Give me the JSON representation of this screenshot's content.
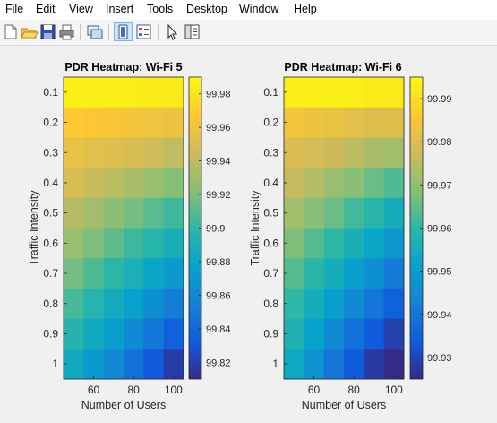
{
  "menu": [
    "File",
    "Edit",
    "View",
    "Insert",
    "Tools",
    "Desktop",
    "Window",
    "Help"
  ],
  "toolbar_icons": [
    "new-figure-icon",
    "open-file-icon",
    "save-icon",
    "print-icon",
    "link-plot-icon",
    "insert-colorbar-icon",
    "insert-legend-icon",
    "pointer-icon",
    "property-inspector-icon"
  ],
  "colors": {
    "parula": [
      "#352a87",
      "#0f5cdd",
      "#1481d6",
      "#06a4ca",
      "#2eb7a4",
      "#87bf77",
      "#d1bb59",
      "#fec832",
      "#f9fb0e"
    ]
  },
  "chart_data": [
    {
      "type": "heatmap",
      "title": "PDR Heatmap: Wi-Fi 5",
      "xlabel": "Number of Users",
      "ylabel": "Traffic Intensity",
      "x": [
        50,
        60,
        70,
        80,
        90,
        100
      ],
      "y": [
        0.1,
        0.2,
        0.3,
        0.4,
        0.5,
        0.6,
        0.7,
        0.8,
        0.9,
        1
      ],
      "xticks": [
        "60",
        "80",
        "100"
      ],
      "yticks": [
        "0.1",
        "0.2",
        "0.3",
        "0.4",
        "0.5",
        "0.6",
        "0.7",
        "0.8",
        "0.9",
        "1"
      ],
      "colorbar": {
        "min": 99.81,
        "max": 99.99,
        "ticks": [
          "99.98",
          "99.96",
          "99.94",
          "99.92",
          "99.9",
          "99.88",
          "99.86",
          "99.84",
          "99.82"
        ],
        "tick_values": [
          99.98,
          99.96,
          99.94,
          99.92,
          99.9,
          99.88,
          99.86,
          99.84,
          99.82
        ]
      },
      "values": [
        [
          99.985,
          99.985,
          99.985,
          99.984,
          99.983,
          99.983
        ],
        [
          99.968,
          99.966,
          99.964,
          99.962,
          99.96,
          99.958
        ],
        [
          99.957,
          99.953,
          99.951,
          99.948,
          99.944,
          99.94
        ],
        [
          99.948,
          99.943,
          99.938,
          99.933,
          99.928,
          99.922
        ],
        [
          99.937,
          99.931,
          99.924,
          99.918,
          99.911,
          99.904
        ],
        [
          99.928,
          99.92,
          99.912,
          99.904,
          99.896,
          99.888
        ],
        [
          99.917,
          99.908,
          99.899,
          99.89,
          99.88,
          99.871
        ],
        [
          99.906,
          99.896,
          99.886,
          99.876,
          99.864,
          99.853
        ],
        [
          99.895,
          99.884,
          99.873,
          99.861,
          99.849,
          99.836
        ],
        [
          99.884,
          99.872,
          99.86,
          99.846,
          99.832,
          99.818
        ]
      ]
    },
    {
      "type": "heatmap",
      "title": "PDR Heatmap: Wi-Fi 6",
      "xlabel": "Number of Users",
      "ylabel": "Traffic Intensity",
      "x": [
        50,
        60,
        70,
        80,
        90,
        100
      ],
      "y": [
        0.1,
        0.2,
        0.3,
        0.4,
        0.5,
        0.6,
        0.7,
        0.8,
        0.9,
        1
      ],
      "xticks": [
        "60",
        "80",
        "100"
      ],
      "yticks": [
        "0.1",
        "0.2",
        "0.3",
        "0.4",
        "0.5",
        "0.6",
        "0.7",
        "0.8",
        "0.9",
        "1"
      ],
      "colorbar": {
        "min": 99.925,
        "max": 99.995,
        "ticks": [
          "99.99",
          "99.98",
          "99.97",
          "99.96",
          "99.95",
          "99.94",
          "99.93"
        ],
        "tick_values": [
          99.99,
          99.98,
          99.97,
          99.96,
          99.95,
          99.94,
          99.93
        ]
      },
      "values": [
        [
          99.993,
          99.993,
          99.993,
          99.993,
          99.992,
          99.992
        ],
        [
          99.984,
          99.983,
          99.982,
          99.981,
          99.98,
          99.98
        ],
        [
          99.979,
          99.978,
          99.977,
          99.975,
          99.973,
          99.972
        ],
        [
          99.976,
          99.974,
          99.971,
          99.969,
          99.966,
          99.963
        ],
        [
          99.972,
          99.969,
          99.966,
          99.962,
          99.959,
          99.955
        ],
        [
          99.968,
          99.964,
          99.96,
          99.956,
          99.952,
          99.948
        ],
        [
          99.964,
          99.959,
          99.955,
          99.95,
          99.946,
          99.941
        ],
        [
          99.96,
          99.955,
          99.95,
          99.945,
          99.94,
          99.935
        ],
        [
          99.957,
          99.951,
          99.945,
          99.939,
          99.934,
          99.929
        ],
        [
          99.953,
          99.947,
          99.94,
          99.934,
          99.928,
          99.923
        ]
      ]
    }
  ]
}
